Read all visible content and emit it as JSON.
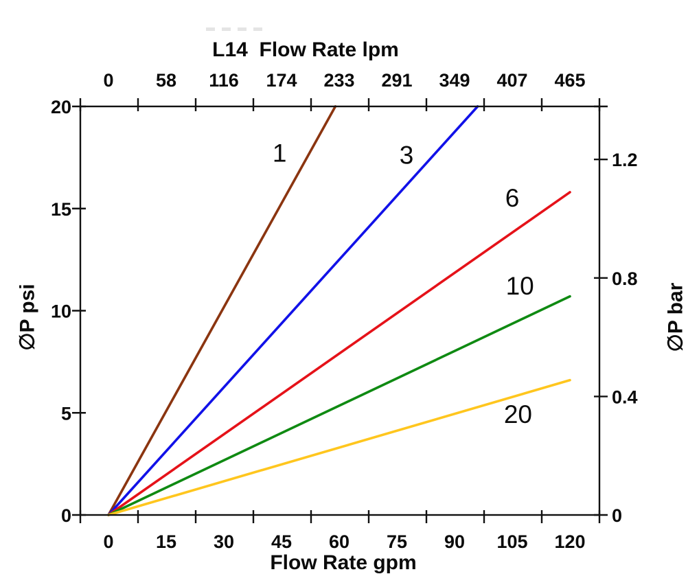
{
  "titles": {
    "top": "L14  Flow Rate lpm",
    "bottom": "Flow Rate gpm",
    "left": "∅P psi",
    "right": "∅P bar"
  },
  "chart_data": {
    "type": "line",
    "title": "L14  Flow Rate lpm",
    "grid": false,
    "legend": "none",
    "plot_background": "#ffffff",
    "axis_color": "#111111",
    "bottom_axis": {
      "label": "Flow Rate gpm",
      "unit": "gpm",
      "ticks": [
        0,
        15,
        30,
        45,
        60,
        75,
        90,
        105,
        120
      ],
      "range": [
        0,
        128
      ]
    },
    "top_axis": {
      "label": "L14  Flow Rate lpm",
      "unit": "lpm",
      "ticks": [
        0,
        58,
        116,
        174,
        233,
        291,
        349,
        407,
        465
      ]
    },
    "left_axis": {
      "label": "∅P psi",
      "unit": "psi",
      "ticks": [
        0,
        5,
        10,
        15,
        20
      ],
      "range": [
        0,
        20
      ]
    },
    "right_axis": {
      "label": "∅P bar",
      "unit": "bar",
      "ticks": [
        0,
        0.4,
        0.8,
        1.2
      ]
    },
    "series": [
      {
        "name": "1",
        "color": "#8B3510",
        "points": [
          [
            0,
            0
          ],
          [
            59,
            20
          ]
        ],
        "label_at": [
          44.5,
          17.7
        ]
      },
      {
        "name": "3",
        "color": "#1111E8",
        "points": [
          [
            0,
            0
          ],
          [
            96,
            20
          ]
        ],
        "label_at": [
          77.5,
          17.6
        ]
      },
      {
        "name": "6",
        "color": "#E51219",
        "points": [
          [
            0,
            0
          ],
          [
            120,
            15.8
          ]
        ],
        "label_at": [
          105.0,
          15.5
        ]
      },
      {
        "name": "10",
        "color": "#0F8A12",
        "points": [
          [
            0,
            0
          ],
          [
            120,
            10.7
          ]
        ],
        "label_at": [
          107.0,
          11.2
        ]
      },
      {
        "name": "20",
        "color": "#FFC61E",
        "points": [
          [
            0,
            0
          ],
          [
            120,
            6.6
          ]
        ],
        "label_at": [
          106.5,
          4.9
        ]
      }
    ],
    "notes": "Pressure drop vs flow curves; each line is labeled by valve model size (1, 3, 6, 10, 20). Points are [gpm, psi]."
  }
}
